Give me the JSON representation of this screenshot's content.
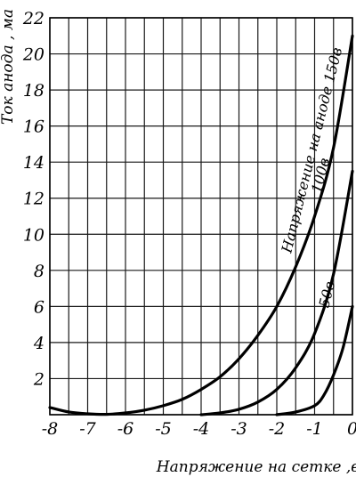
{
  "chart_data": {
    "type": "line",
    "title": "",
    "xlabel": "Напряжение на сетке ,в",
    "ylabel": "Ток анода , ма",
    "xlim": [
      -8,
      0
    ],
    "ylim": [
      0,
      22
    ],
    "grid": true,
    "x_ticks": [
      "-8",
      "-7",
      "-6",
      "-5",
      "-4",
      "-3",
      "-2",
      "-1",
      "0"
    ],
    "y_ticks": [
      "2",
      "4",
      "6",
      "8",
      "10",
      "12",
      "14",
      "16",
      "18",
      "20",
      "22"
    ],
    "series": [
      {
        "name": "Напряжение на аноде 150в",
        "points": [
          [
            -8,
            0.4
          ],
          [
            -7.5,
            0.15
          ],
          [
            -7,
            0.05
          ],
          [
            -6.5,
            0.02
          ],
          [
            -6,
            0.1
          ],
          [
            -5.5,
            0.25
          ],
          [
            -5,
            0.5
          ],
          [
            -4.5,
            0.85
          ],
          [
            -4,
            1.4
          ],
          [
            -3.5,
            2.1
          ],
          [
            -3,
            3.1
          ],
          [
            -2.5,
            4.4
          ],
          [
            -2,
            6.0
          ],
          [
            -1.5,
            8.2
          ],
          [
            -1,
            11.0
          ],
          [
            -0.5,
            14.8
          ],
          [
            0,
            21.0
          ]
        ]
      },
      {
        "name": "100в",
        "points": [
          [
            -4,
            0.0
          ],
          [
            -3.5,
            0.1
          ],
          [
            -3,
            0.3
          ],
          [
            -2.5,
            0.7
          ],
          [
            -2,
            1.4
          ],
          [
            -1.5,
            2.6
          ],
          [
            -1,
            4.5
          ],
          [
            -0.5,
            7.8
          ],
          [
            0,
            13.5
          ]
        ]
      },
      {
        "name": "50в",
        "points": [
          [
            -2,
            0.0
          ],
          [
            -1.5,
            0.15
          ],
          [
            -1,
            0.5
          ],
          [
            -0.75,
            1.1
          ],
          [
            -0.5,
            2.2
          ],
          [
            -0.25,
            3.7
          ],
          [
            0,
            6.0
          ]
        ]
      }
    ]
  }
}
